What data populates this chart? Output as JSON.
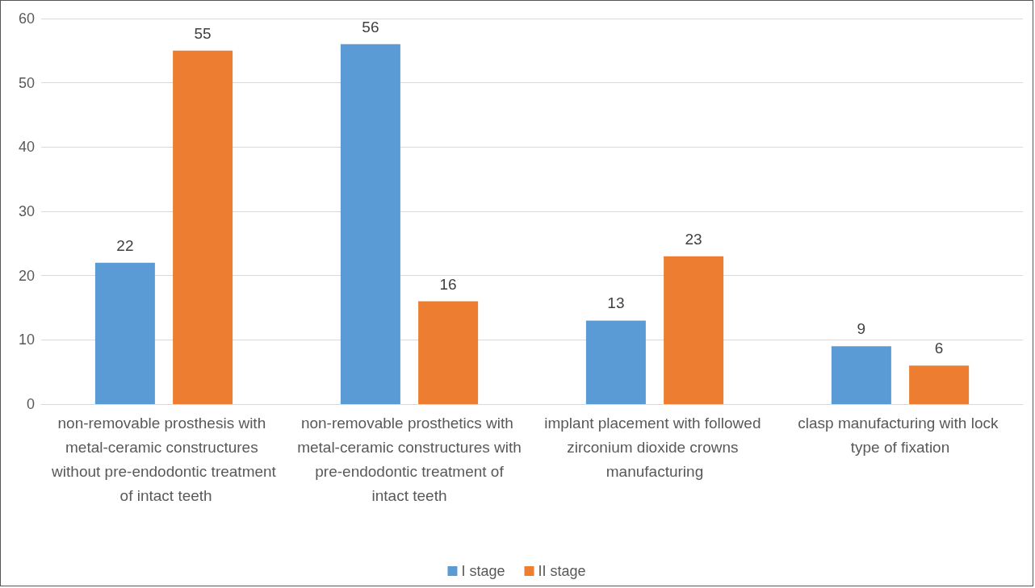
{
  "chart_data": {
    "type": "bar",
    "categories": [
      "non-removable prosthesis with metal-ceramic constructures without pre-endodontic treatment of intact teeth",
      "non-removable prosthetics with metal-ceramic constructures with pre-endodontic treatment of intact teeth",
      "implant placement with followed zirconium dioxide crowns manufacturing",
      "clasp manufacturing with lock type of fixation"
    ],
    "series": [
      {
        "name": "I stage",
        "color": "#5b9bd5",
        "values": [
          22,
          56,
          13,
          9
        ]
      },
      {
        "name": "II stage",
        "color": "#ed7d31",
        "values": [
          55,
          16,
          23,
          6
        ]
      }
    ],
    "ylim": [
      0,
      60
    ],
    "yticks": [
      0,
      10,
      20,
      30,
      40,
      50,
      60
    ],
    "grid": "y",
    "legend": "bottom",
    "data_labels": true
  }
}
